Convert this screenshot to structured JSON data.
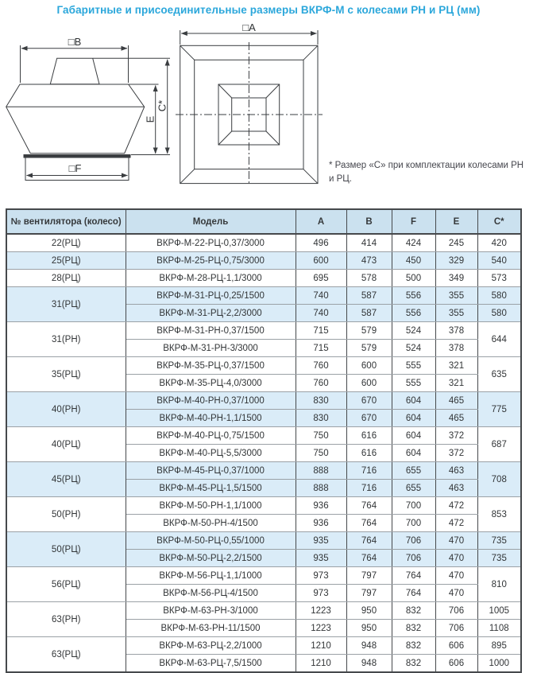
{
  "title": "Габаритные и присоединительные размеры ВКРФ-М с колесами РН и РЦ (мм)",
  "note": "* Размер «С» при комплектации колесами РН и РЦ.",
  "drawings": {
    "side_view": {
      "dim_b_label": "□B",
      "dim_c_label": "C*",
      "dim_e_label": "E",
      "dim_f_label": "□F"
    },
    "top_view": {
      "dim_a_label": "□A"
    }
  },
  "colors": {
    "title_blue": "#2ba7db",
    "header_bg": "#cbe1ef",
    "row_shade_bg": "#daecf8",
    "border_dark": "#46494c",
    "border_light": "#9ba1a6",
    "line_color": "#3a3d40"
  },
  "table": {
    "headers": [
      "№ вентилятора (колесо)",
      "Модель",
      "A",
      "B",
      "F",
      "E",
      "C*"
    ],
    "groups": [
      {
        "wheel": "22(РЦ)",
        "shaded": false,
        "rows": [
          {
            "model": "ВКРФ-М-22-РЦ-0,37/3000",
            "a": "496",
            "b": "414",
            "f": "424",
            "e": "245",
            "c": "420"
          }
        ]
      },
      {
        "wheel": "25(РЦ)",
        "shaded": true,
        "rows": [
          {
            "model": "ВКРФ-М-25-РЦ-0,75/3000",
            "a": "600",
            "b": "473",
            "f": "450",
            "e": "329",
            "c": "540"
          }
        ]
      },
      {
        "wheel": "28(РЦ)",
        "shaded": false,
        "rows": [
          {
            "model": "ВКРФ-М-28-РЦ-1,1/3000",
            "a": "695",
            "b": "578",
            "f": "500",
            "e": "349",
            "c": "573"
          }
        ]
      },
      {
        "wheel": "31(РЦ)",
        "shaded": true,
        "rows": [
          {
            "model": "ВКРФ-М-31-РЦ-0,25/1500",
            "a": "740",
            "b": "587",
            "f": "556",
            "e": "355",
            "c": "580"
          },
          {
            "model": "ВКРФ-М-31-РЦ-2,2/3000",
            "a": "740",
            "b": "587",
            "f": "556",
            "e": "355",
            "c": "580"
          }
        ]
      },
      {
        "wheel": "31(РН)",
        "shaded": false,
        "c_merged": "644",
        "rows": [
          {
            "model": "ВКРФ-М-31-РН-0,37/1500",
            "a": "715",
            "b": "579",
            "f": "524",
            "e": "378"
          },
          {
            "model": "ВКРФ-М-31-РН-3/3000",
            "a": "715",
            "b": "579",
            "f": "524",
            "e": "378"
          }
        ]
      },
      {
        "wheel": "35(РЦ)",
        "shaded": false,
        "c_merged": "635",
        "rows": [
          {
            "model": "ВКРФ-М-35-РЦ-0,37/1500",
            "a": "760",
            "b": "600",
            "f": "555",
            "e": "321"
          },
          {
            "model": "ВКРФ-М-35-РЦ-4,0/3000",
            "a": "760",
            "b": "600",
            "f": "555",
            "e": "321"
          }
        ]
      },
      {
        "wheel": "40(РН)",
        "shaded": true,
        "c_merged": "775",
        "rows": [
          {
            "model": "ВКРФ-М-40-РН-0,37/1000",
            "a": "830",
            "b": "670",
            "f": "604",
            "e": "465"
          },
          {
            "model": "ВКРФ-М-40-РН-1,1/1500",
            "a": "830",
            "b": "670",
            "f": "604",
            "e": "465"
          }
        ]
      },
      {
        "wheel": "40(РЦ)",
        "shaded": false,
        "c_merged": "687",
        "rows": [
          {
            "model": "ВКРФ-М-40-РЦ-0,75/1500",
            "a": "750",
            "b": "616",
            "f": "604",
            "e": "372"
          },
          {
            "model": "ВКРФ-М-40-РЦ-5,5/3000",
            "a": "750",
            "b": "616",
            "f": "604",
            "e": "372"
          }
        ]
      },
      {
        "wheel": "45(РЦ)",
        "shaded": true,
        "c_merged": "708",
        "rows": [
          {
            "model": "ВКРФ-М-45-РЦ-0,37/1000",
            "a": "888",
            "b": "716",
            "f": "655",
            "e": "463"
          },
          {
            "model": "ВКРФ-М-45-РЦ-1,5/1500",
            "a": "888",
            "b": "716",
            "f": "655",
            "e": "463"
          }
        ]
      },
      {
        "wheel": "50(РН)",
        "shaded": false,
        "c_merged": "853",
        "rows": [
          {
            "model": "ВКРФ-М-50-РН-1,1/1000",
            "a": "936",
            "b": "764",
            "f": "700",
            "e": "472"
          },
          {
            "model": "ВКРФ-М-50-РН-4/1500",
            "a": "936",
            "b": "764",
            "f": "700",
            "e": "472"
          }
        ]
      },
      {
        "wheel": "50(РЦ)",
        "shaded": true,
        "rows": [
          {
            "model": "ВКРФ-М-50-РЦ-0,55/1000",
            "a": "935",
            "b": "764",
            "f": "706",
            "e": "470",
            "c": "735"
          },
          {
            "model": "ВКРФ-М-50-РЦ-2,2/1500",
            "a": "935",
            "b": "764",
            "f": "706",
            "e": "470",
            "c": "735"
          }
        ]
      },
      {
        "wheel": "56(РЦ)",
        "shaded": false,
        "c_merged": "810",
        "rows": [
          {
            "model": "ВКРФ-М-56-РЦ-1,1/1000",
            "a": "973",
            "b": "797",
            "f": "764",
            "e": "470"
          },
          {
            "model": "ВКРФ-М-56-РЦ-4/1500",
            "a": "973",
            "b": "797",
            "f": "764",
            "e": "470"
          }
        ]
      },
      {
        "wheel": "63(РН)",
        "shaded": false,
        "rows": [
          {
            "model": "ВКРФ-М-63-РН-3/1000",
            "a": "1223",
            "b": "950",
            "f": "832",
            "e": "706",
            "c": "1005"
          },
          {
            "model": "ВКРФ-М-63-РН-11/1500",
            "a": "1223",
            "b": "950",
            "f": "832",
            "e": "706",
            "c": "1108"
          }
        ]
      },
      {
        "wheel": "63(РЦ)",
        "shaded": false,
        "rows": [
          {
            "model": "ВКРФ-М-63-РЦ-2,2/1000",
            "a": "1210",
            "b": "948",
            "f": "832",
            "e": "606",
            "c": "895"
          },
          {
            "model": "ВКРФ-М-63-РЦ-7,5/1500",
            "a": "1210",
            "b": "948",
            "f": "832",
            "e": "606",
            "c": "1000"
          }
        ]
      }
    ]
  }
}
